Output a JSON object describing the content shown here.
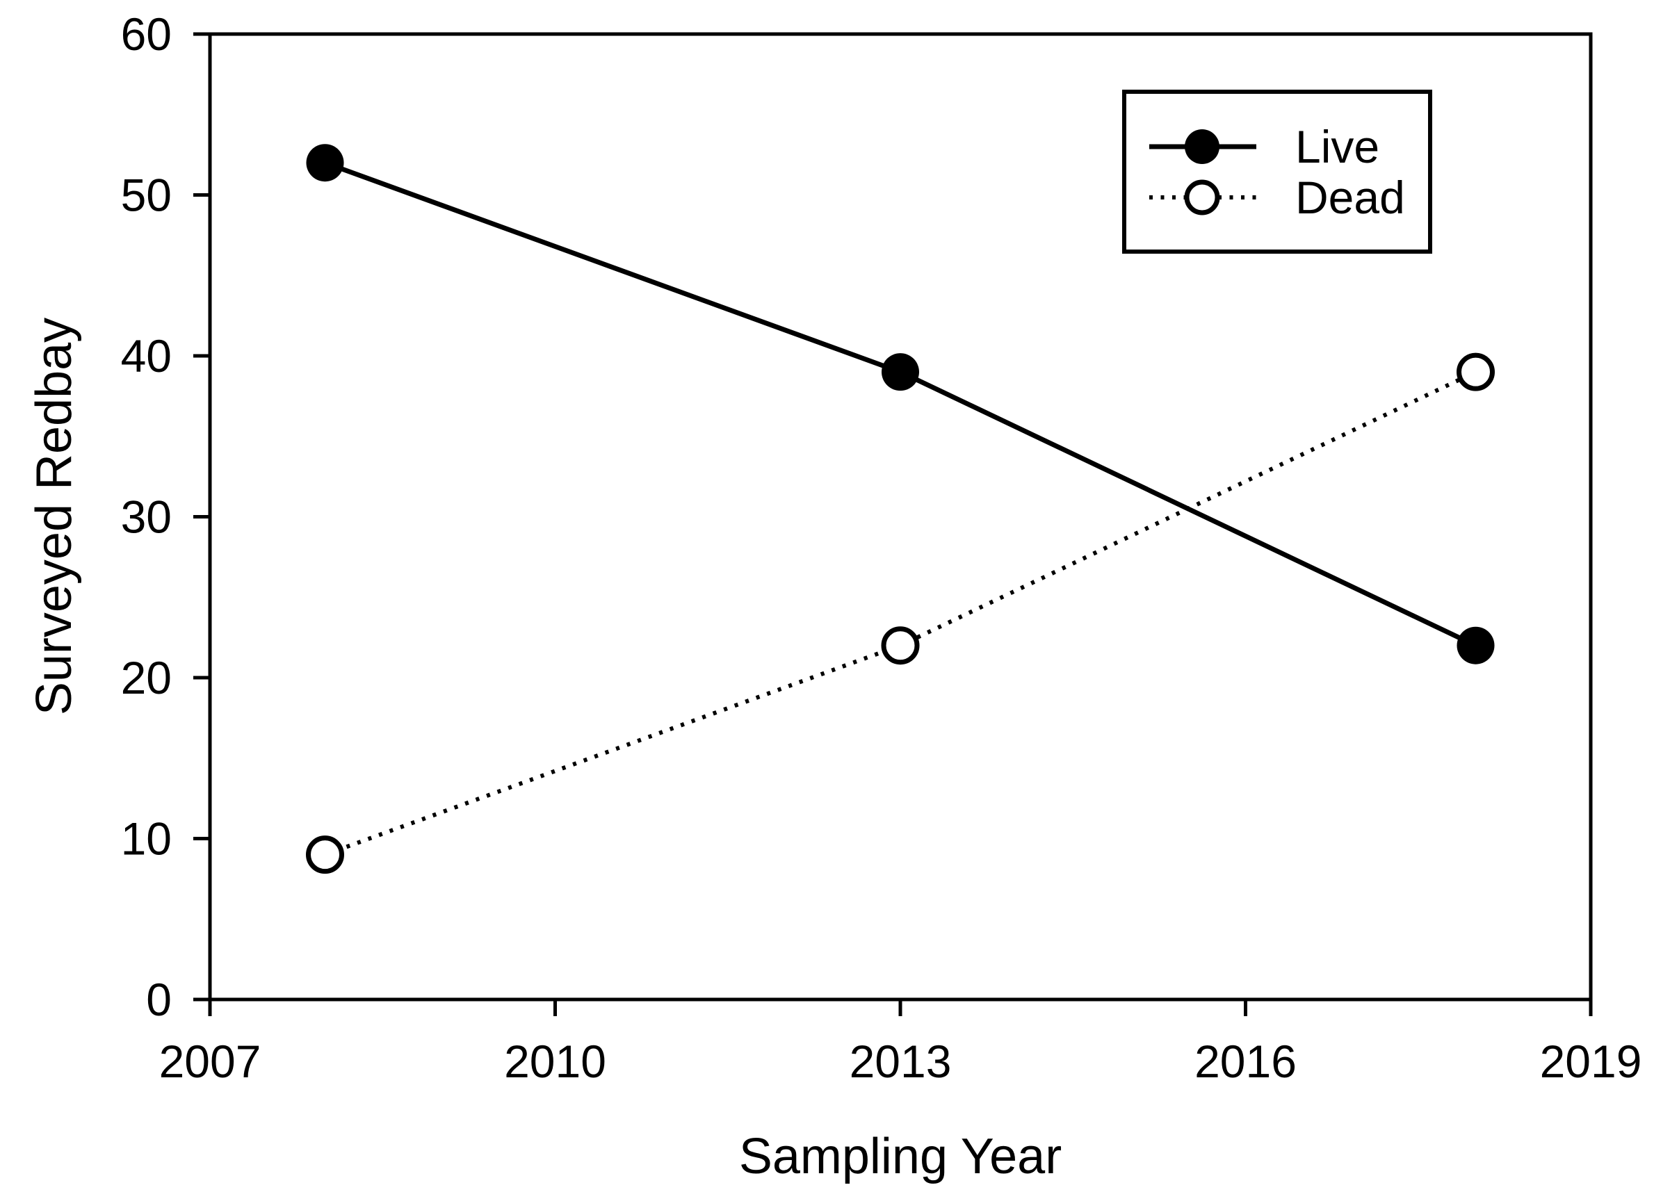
{
  "chart_data": {
    "type": "line",
    "title": "",
    "xlabel": "Sampling Year",
    "ylabel": "Surveyed Redbay",
    "xlim": [
      2007,
      2019
    ],
    "ylim": [
      0,
      60
    ],
    "xticks": [
      2007,
      2010,
      2013,
      2016,
      2019
    ],
    "yticks": [
      0,
      10,
      20,
      30,
      40,
      50,
      60
    ],
    "grid": false,
    "x": [
      2008,
      2013,
      2018
    ],
    "series": [
      {
        "name": "Live",
        "values": [
          52,
          39,
          22
        ],
        "marker": "filled-circle",
        "line_style": "solid"
      },
      {
        "name": "Dead",
        "values": [
          9,
          22,
          39
        ],
        "marker": "open-circle",
        "line_style": "dotted"
      }
    ],
    "legend": {
      "position": "top-right",
      "entries": [
        "Live",
        "Dead"
      ]
    },
    "colors": {
      "foreground": "#000000",
      "background": "#ffffff"
    }
  }
}
